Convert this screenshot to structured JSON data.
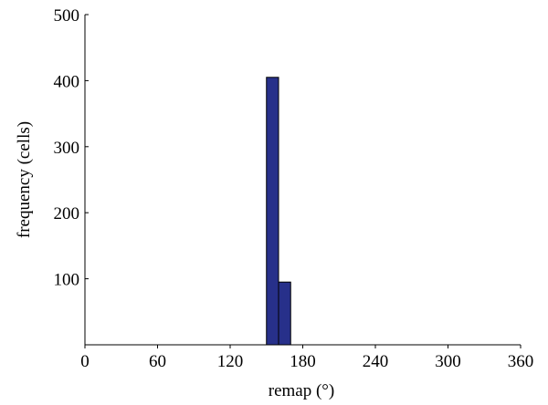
{
  "chart_data": {
    "type": "bar",
    "xlabel": "remap (°)",
    "ylabel": "frequency (cells)",
    "xlim": [
      0,
      360
    ],
    "ylim": [
      0,
      500
    ],
    "xticks": [
      0,
      60,
      120,
      180,
      240,
      300,
      360
    ],
    "yticks": [
      100,
      200,
      300,
      400,
      500
    ],
    "bins": [
      {
        "x_start": 150,
        "x_end": 160,
        "value": 405
      },
      {
        "x_start": 160,
        "x_end": 170,
        "value": 95
      }
    ],
    "bar_color": "#27308a",
    "grid": false
  }
}
